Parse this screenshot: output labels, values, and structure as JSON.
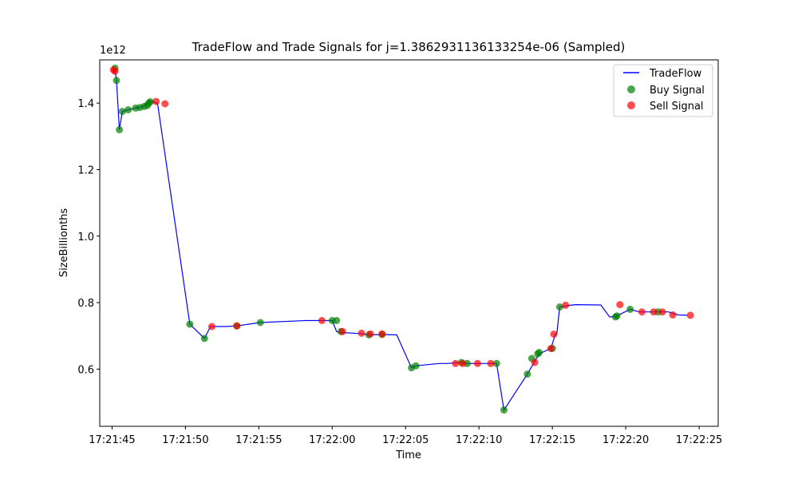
{
  "chart_data": {
    "type": "line",
    "title": "TradeFlow and Trade Signals for j=1.3862931136133254e-06 (Sampled)",
    "xlabel": "Time",
    "ylabel": "SizeBillionths",
    "y_offset_label": "1e12",
    "x_unit": "seconds after 17:21:44",
    "xlim": [
      0.16,
      42.3
    ],
    "ylim": [
      0.428,
      1.53
    ],
    "x_ticks": [
      {
        "value": 1,
        "label": "17:21:45"
      },
      {
        "value": 6,
        "label": "17:21:50"
      },
      {
        "value": 11,
        "label": "17:21:55"
      },
      {
        "value": 16,
        "label": "17:22:00"
      },
      {
        "value": 21,
        "label": "17:22:05"
      },
      {
        "value": 26,
        "label": "17:22:10"
      },
      {
        "value": 31,
        "label": "17:22:15"
      },
      {
        "value": 36,
        "label": "17:22:20"
      },
      {
        "value": 41,
        "label": "17:22:25"
      }
    ],
    "y_ticks": [
      {
        "value": 0.6,
        "label": "0.6"
      },
      {
        "value": 0.8,
        "label": "0.8"
      },
      {
        "value": 1.0,
        "label": "1.0"
      },
      {
        "value": 1.2,
        "label": "1.2"
      },
      {
        "value": 1.4,
        "label": "1.4"
      }
    ],
    "grid": false,
    "legend_position": "top-right",
    "series": [
      {
        "name": "TradeFlow",
        "kind": "line",
        "color": "#0000ff",
        "x": [
          1.2,
          1.3,
          1.5,
          1.7,
          2.1,
          2.6,
          2.9,
          3.2,
          3.4,
          3.5,
          3.8,
          4.1,
          6.3,
          7.3,
          7.7,
          8.8,
          9.5,
          11.1,
          14.2,
          16.0,
          16.3,
          16.6,
          17.9,
          18.5,
          19.4,
          20.4,
          21.4,
          21.7,
          23.3,
          23.8,
          24.8,
          25.2,
          26.0,
          27.2,
          27.7,
          29.3,
          30.1,
          30.9,
          31.2,
          31.3,
          31.5,
          32.2,
          32.6,
          34.3,
          34.9,
          35.3,
          36.3,
          36.9,
          37.6,
          38.2,
          38.9,
          39.6,
          40.2
        ],
        "y": [
          1.5,
          1.468,
          1.32,
          1.375,
          1.38,
          1.385,
          1.387,
          1.393,
          1.4,
          1.404,
          1.405,
          1.398,
          0.735,
          0.692,
          0.728,
          0.728,
          0.73,
          0.74,
          0.746,
          0.746,
          0.713,
          0.71,
          0.707,
          0.703,
          0.704,
          0.703,
          0.604,
          0.61,
          0.617,
          0.617,
          0.62,
          0.617,
          0.617,
          0.617,
          0.477,
          0.585,
          0.646,
          0.662,
          0.705,
          0.705,
          0.787,
          0.792,
          0.794,
          0.793,
          0.757,
          0.758,
          0.78,
          0.772,
          0.772,
          0.772,
          0.772,
          0.763,
          0.762
        ]
      },
      {
        "name": "Buy Signal",
        "kind": "scatter",
        "color": "#008000",
        "x": [
          1.2,
          1.3,
          1.5,
          1.7,
          2.1,
          2.6,
          2.9,
          3.2,
          3.4,
          3.5,
          3.6,
          6.3,
          7.3,
          9.5,
          11.1,
          16.0,
          16.3,
          16.6,
          18.5,
          19.4,
          21.4,
          21.7,
          24.8,
          25.2,
          27.2,
          27.7,
          29.3,
          29.6,
          30.0,
          30.1,
          31.0,
          31.5,
          35.3,
          35.4,
          36.3,
          38.2
        ],
        "y": [
          1.505,
          1.468,
          1.32,
          1.375,
          1.38,
          1.385,
          1.387,
          1.39,
          1.393,
          1.4,
          1.404,
          0.735,
          0.692,
          0.73,
          0.74,
          0.746,
          0.746,
          0.713,
          0.703,
          0.704,
          0.604,
          0.61,
          0.62,
          0.617,
          0.617,
          0.477,
          0.585,
          0.632,
          0.646,
          0.65,
          0.662,
          0.787,
          0.757,
          0.76,
          0.78,
          0.772
        ]
      },
      {
        "name": "Sell Signal",
        "kind": "scatter",
        "color": "#ff0000",
        "x": [
          1.1,
          1.2,
          4.0,
          4.6,
          7.8,
          9.5,
          15.3,
          16.7,
          18.0,
          18.6,
          19.4,
          24.4,
          24.9,
          25.9,
          26.8,
          29.8,
          30.9,
          31.1,
          31.9,
          35.6,
          37.1,
          37.9,
          38.5,
          39.2,
          40.4
        ],
        "y": [
          1.5,
          1.496,
          1.405,
          1.398,
          0.728,
          0.73,
          0.746,
          0.713,
          0.708,
          0.706,
          0.706,
          0.617,
          0.617,
          0.617,
          0.617,
          0.62,
          0.662,
          0.705,
          0.792,
          0.794,
          0.772,
          0.772,
          0.772,
          0.763,
          0.762
        ]
      }
    ]
  }
}
